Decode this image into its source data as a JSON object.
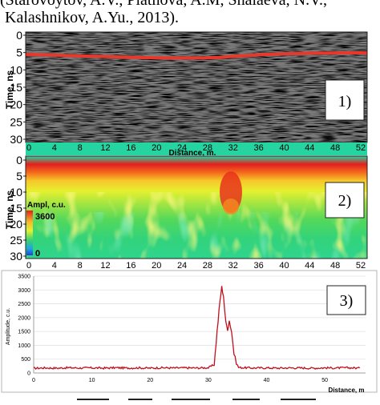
{
  "caption": {
    "line1": "(Starovoytov, A.V., Platnova, A.M, Shalaeva, N.V.,",
    "line2": "Kalashnikov, A.Yu., 2013)."
  },
  "panel1": {
    "label": "1)",
    "ylabel": "Time, ns",
    "xlabel": "Distance, m.",
    "y_ticks": [
      "0",
      "5",
      "10",
      "15",
      "20",
      "25",
      "30"
    ],
    "x_ticks": [
      "0",
      "4",
      "8",
      "12",
      "16",
      "20",
      "24",
      "28",
      "32",
      "36",
      "40",
      "44",
      "48",
      "52"
    ],
    "horizon_color": "#e8382b"
  },
  "panel2": {
    "label": "2)",
    "ylabel": "Time, ns",
    "y_ticks": [
      "0",
      "5",
      "10",
      "15",
      "20",
      "25",
      "30"
    ],
    "x_ticks": [
      "0",
      "4",
      "8",
      "12",
      "16",
      "20",
      "24",
      "28",
      "32",
      "36",
      "40",
      "44",
      "48",
      "52"
    ],
    "legend_title": "Ampl, c.u.",
    "legend_max": "3600",
    "legend_min": "0",
    "colors": [
      "#e21f1f",
      "#f6631c",
      "#f9b527",
      "#f7ef2c",
      "#c8ee33",
      "#7ddc47",
      "#3fd36c",
      "#22d6a6",
      "#1fa6e0",
      "#2540d8"
    ]
  },
  "panel3": {
    "label": "3)",
    "ylabel": "Amplitude, c.u.",
    "xlabel": "Distance, m",
    "y_ticks": [
      "0",
      "500",
      "1000",
      "1500",
      "2000",
      "2500",
      "3000",
      "3500"
    ],
    "x_ticks": [
      "0",
      "10",
      "20",
      "30",
      "40",
      "50"
    ],
    "line_color": "#c0101c",
    "chart_data": {
      "type": "line",
      "xlabel": "Distance, m",
      "ylabel": "Amplitude, c.u.",
      "xlim": [
        0,
        57
      ],
      "ylim": [
        0,
        3500
      ],
      "x": [
        0,
        2,
        4,
        6,
        8,
        10,
        12,
        14,
        16,
        18,
        20,
        22,
        24,
        26,
        28,
        30,
        31,
        31.5,
        32,
        32.3,
        32.6,
        33,
        33.3,
        33.6,
        34,
        34.4,
        34.8,
        35.2,
        36,
        38,
        40,
        42,
        44,
        46,
        48,
        50,
        52,
        54,
        56
      ],
      "y": [
        170,
        185,
        175,
        190,
        180,
        185,
        175,
        190,
        180,
        185,
        175,
        190,
        180,
        185,
        180,
        190,
        300,
        1500,
        2600,
        3100,
        2800,
        1800,
        1600,
        1900,
        1500,
        700,
        350,
        200,
        190,
        180,
        185,
        175,
        185,
        180,
        175,
        185,
        180,
        190,
        175
      ]
    }
  }
}
